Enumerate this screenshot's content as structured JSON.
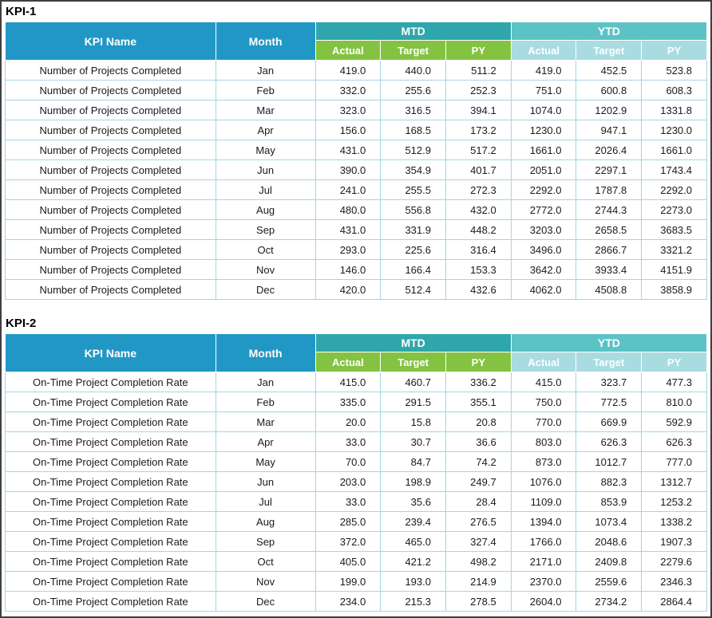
{
  "labels": {
    "kpi_name": "KPI Name",
    "month": "Month",
    "mtd": "MTD",
    "ytd": "YTD",
    "sub": [
      "Actual",
      "Target",
      "PY"
    ]
  },
  "colors": {
    "header_blue": "#2197c5",
    "mtd_teal": "#2fa6ab",
    "ytd_teal": "#5bc3c6",
    "mtd_sub": "#84c341",
    "ytd_sub": "#a9dce0",
    "grid": "#a5d5e2",
    "page_border": "#3f3f3f"
  },
  "tables": [
    {
      "title": "KPI-1",
      "kpi_name": "Number of Projects Completed",
      "rows": [
        {
          "month": "Jan",
          "values": [
            "419.0",
            "440.0",
            "511.2",
            "419.0",
            "452.5",
            "523.8"
          ]
        },
        {
          "month": "Feb",
          "values": [
            "332.0",
            "255.6",
            "252.3",
            "751.0",
            "600.8",
            "608.3"
          ]
        },
        {
          "month": "Mar",
          "values": [
            "323.0",
            "316.5",
            "394.1",
            "1074.0",
            "1202.9",
            "1331.8"
          ]
        },
        {
          "month": "Apr",
          "values": [
            "156.0",
            "168.5",
            "173.2",
            "1230.0",
            "947.1",
            "1230.0"
          ]
        },
        {
          "month": "May",
          "values": [
            "431.0",
            "512.9",
            "517.2",
            "1661.0",
            "2026.4",
            "1661.0"
          ]
        },
        {
          "month": "Jun",
          "values": [
            "390.0",
            "354.9",
            "401.7",
            "2051.0",
            "2297.1",
            "1743.4"
          ]
        },
        {
          "month": "Jul",
          "values": [
            "241.0",
            "255.5",
            "272.3",
            "2292.0",
            "1787.8",
            "2292.0"
          ]
        },
        {
          "month": "Aug",
          "values": [
            "480.0",
            "556.8",
            "432.0",
            "2772.0",
            "2744.3",
            "2273.0"
          ]
        },
        {
          "month": "Sep",
          "values": [
            "431.0",
            "331.9",
            "448.2",
            "3203.0",
            "2658.5",
            "3683.5"
          ]
        },
        {
          "month": "Oct",
          "values": [
            "293.0",
            "225.6",
            "316.4",
            "3496.0",
            "2866.7",
            "3321.2"
          ]
        },
        {
          "month": "Nov",
          "values": [
            "146.0",
            "166.4",
            "153.3",
            "3642.0",
            "3933.4",
            "4151.9"
          ]
        },
        {
          "month": "Dec",
          "values": [
            "420.0",
            "512.4",
            "432.6",
            "4062.0",
            "4508.8",
            "3858.9"
          ]
        }
      ]
    },
    {
      "title": "KPI-2",
      "kpi_name": "On-Time Project Completion Rate",
      "rows": [
        {
          "month": "Jan",
          "values": [
            "415.0",
            "460.7",
            "336.2",
            "415.0",
            "323.7",
            "477.3"
          ]
        },
        {
          "month": "Feb",
          "values": [
            "335.0",
            "291.5",
            "355.1",
            "750.0",
            "772.5",
            "810.0"
          ]
        },
        {
          "month": "Mar",
          "values": [
            "20.0",
            "15.8",
            "20.8",
            "770.0",
            "669.9",
            "592.9"
          ]
        },
        {
          "month": "Apr",
          "values": [
            "33.0",
            "30.7",
            "36.6",
            "803.0",
            "626.3",
            "626.3"
          ]
        },
        {
          "month": "May",
          "values": [
            "70.0",
            "84.7",
            "74.2",
            "873.0",
            "1012.7",
            "777.0"
          ]
        },
        {
          "month": "Jun",
          "values": [
            "203.0",
            "198.9",
            "249.7",
            "1076.0",
            "882.3",
            "1312.7"
          ]
        },
        {
          "month": "Jul",
          "values": [
            "33.0",
            "35.6",
            "28.4",
            "1109.0",
            "853.9",
            "1253.2"
          ]
        },
        {
          "month": "Aug",
          "values": [
            "285.0",
            "239.4",
            "276.5",
            "1394.0",
            "1073.4",
            "1338.2"
          ]
        },
        {
          "month": "Sep",
          "values": [
            "372.0",
            "465.0",
            "327.4",
            "1766.0",
            "2048.6",
            "1907.3"
          ]
        },
        {
          "month": "Oct",
          "values": [
            "405.0",
            "421.2",
            "498.2",
            "2171.0",
            "2409.8",
            "2279.6"
          ]
        },
        {
          "month": "Nov",
          "values": [
            "199.0",
            "193.0",
            "214.9",
            "2370.0",
            "2559.6",
            "2346.3"
          ]
        },
        {
          "month": "Dec",
          "values": [
            "234.0",
            "215.3",
            "278.5",
            "2604.0",
            "2734.2",
            "2864.4"
          ]
        }
      ]
    }
  ]
}
